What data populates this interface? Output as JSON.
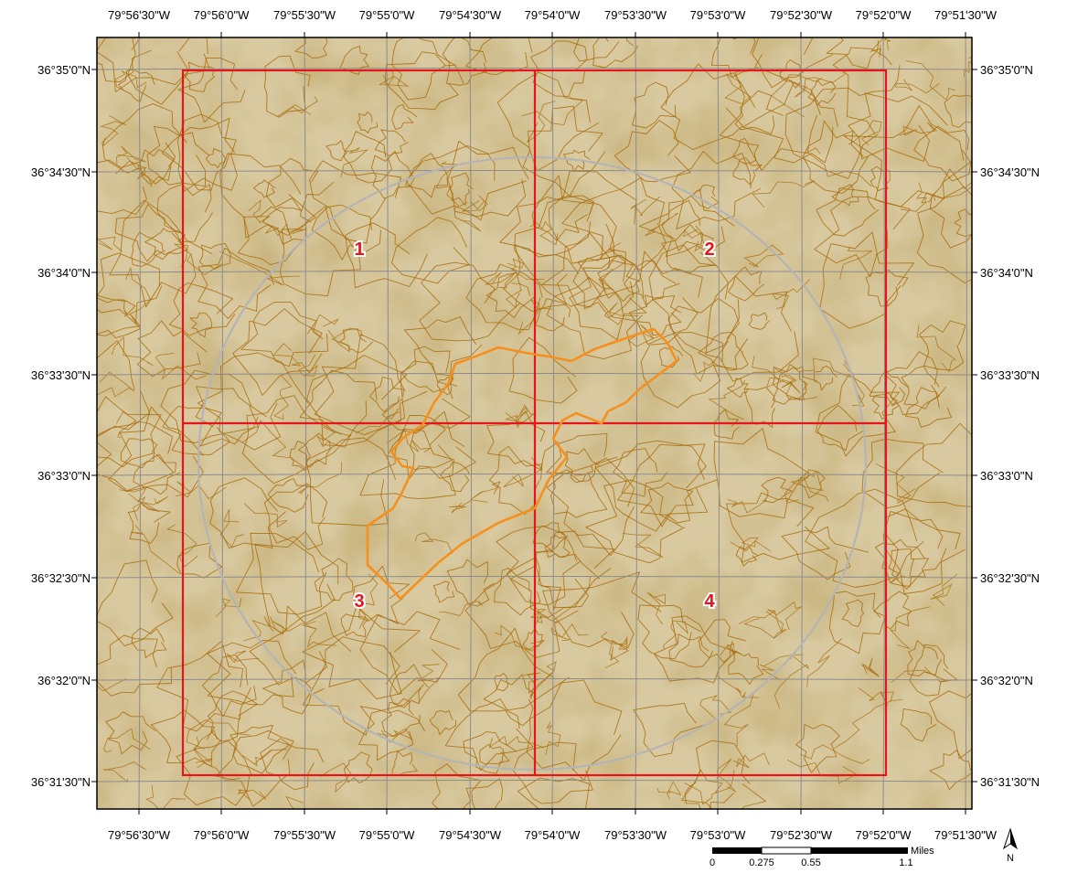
{
  "map": {
    "longitude_ticks": [
      "79°56'30\"W",
      "79°56'0\"W",
      "79°55'30\"W",
      "79°55'0\"W",
      "79°54'30\"W",
      "79°54'0\"W",
      "79°53'30\"W",
      "79°53'0\"W",
      "79°52'30\"W",
      "79°52'0\"W",
      "79°51'30\"W"
    ],
    "latitude_ticks": [
      "36°35'0\"N",
      "36°34'30\"N",
      "36°34'0\"N",
      "36°33'30\"N",
      "36°33'0\"N",
      "36°32'30\"N",
      "36°32'0\"N",
      "36°31'30\"N"
    ],
    "quadrants": [
      "1",
      "2",
      "3",
      "4"
    ],
    "colors": {
      "terrain": "#d8c9a0",
      "contour": "#a86a08",
      "grid": "#8c8c8c",
      "quadrant_border": "#e8141c",
      "site_outline": "#f5901e",
      "buffer_circle": "#b4b4b4"
    }
  },
  "scale_bar": {
    "ticks": [
      "0",
      "0.275",
      "0.55",
      "1.1"
    ],
    "unit": "Miles"
  },
  "north_arrow": {
    "label": "N"
  }
}
